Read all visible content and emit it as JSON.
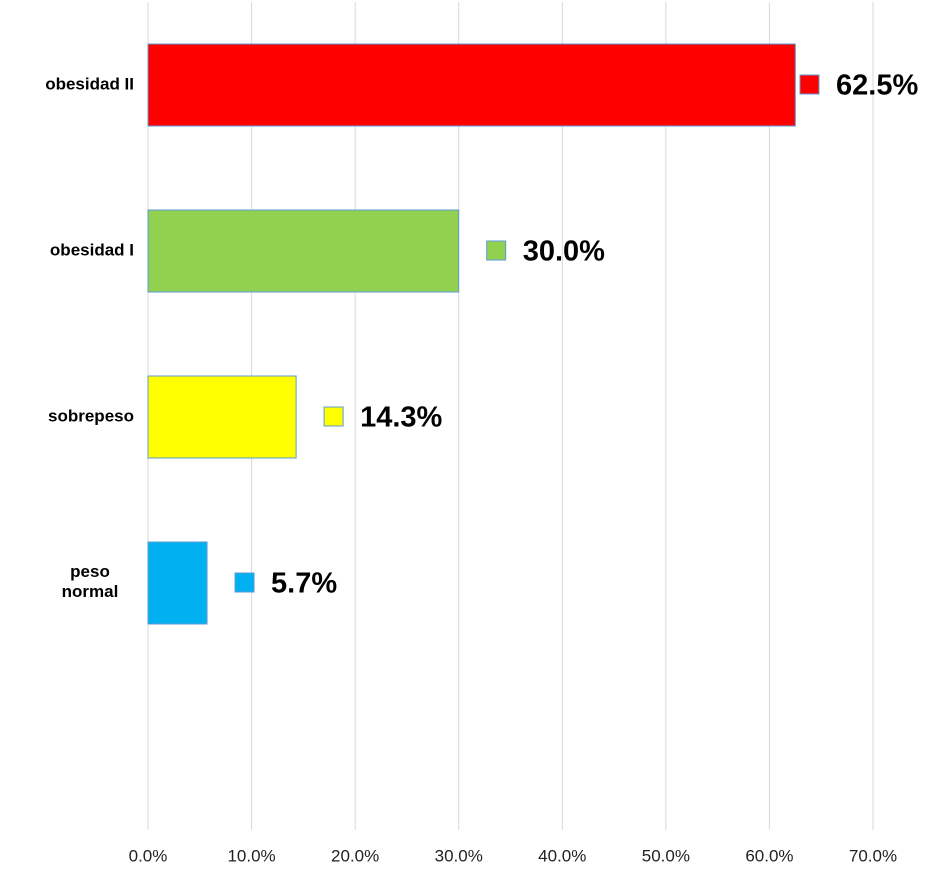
{
  "chart_data": {
    "type": "barh",
    "categories": [
      "obesidad II",
      "obesidad I",
      "sobrepeso",
      "peso normal"
    ],
    "values": [
      62.5,
      30.0,
      14.3,
      5.7
    ],
    "value_labels": [
      "62.5%",
      "30.0%",
      "14.3%",
      "5.7%"
    ],
    "colors": [
      "#ff0000",
      "#92d050",
      "#ffff00",
      "#00b0f0"
    ],
    "xlim": [
      0,
      70
    ],
    "xticks": [
      {
        "value": 0,
        "label": "0.0%"
      },
      {
        "value": 10,
        "label": "10.0%"
      },
      {
        "value": 20,
        "label": "20.0%"
      },
      {
        "value": 30,
        "label": "30.0%"
      },
      {
        "value": 40,
        "label": "40.0%"
      },
      {
        "value": 50,
        "label": "50.0%"
      },
      {
        "value": 60,
        "label": "60.0%"
      },
      {
        "value": 70,
        "label": "70.0%"
      }
    ],
    "grid": true
  }
}
